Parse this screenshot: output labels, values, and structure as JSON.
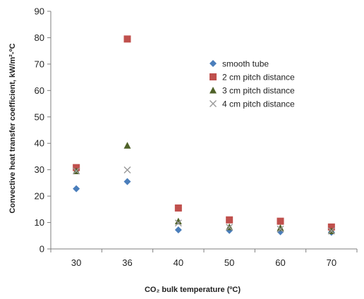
{
  "chart_data": {
    "type": "scatter",
    "categories": [
      "30",
      "36",
      "40",
      "50",
      "60",
      "70"
    ],
    "title": "",
    "xlabel": "CO₂ bulk temperature (ºC)",
    "ylabel": "Convective heat transfer coefficient, kW/m²-ºC",
    "ylim": [
      0,
      90
    ],
    "yticks": [
      0,
      10,
      20,
      30,
      40,
      50,
      60,
      70,
      80,
      90
    ],
    "grid": false,
    "legend": "inside-top-right",
    "series": [
      {
        "name": "smooth tube",
        "marker": "diamond",
        "color": "#4a7ebb",
        "values": [
          22.8,
          25.5,
          7.2,
          7.0,
          6.5,
          6.3
        ]
      },
      {
        "name": "2 cm pitch distance",
        "marker": "square",
        "color": "#c0504d",
        "values": [
          30.8,
          79.5,
          15.5,
          11.0,
          10.5,
          8.3
        ]
      },
      {
        "name": "3 cm pitch distance",
        "marker": "triangle",
        "color": "#4f6228",
        "values": [
          29.5,
          39.2,
          10.5,
          8.3,
          8.0,
          6.8
        ]
      },
      {
        "name": "4 cm pitch distance",
        "marker": "x",
        "color": "#9a9a9a",
        "values": [
          29.5,
          29.9,
          9.8,
          8.2,
          7.5,
          6.8
        ]
      }
    ]
  }
}
